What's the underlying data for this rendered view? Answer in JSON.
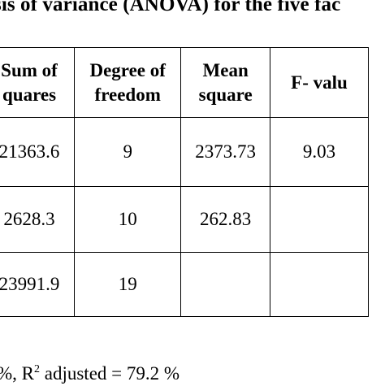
{
  "caption": "sis of variance (ANOVA) for the five fac",
  "table": {
    "headers": {
      "sum_of_squares": [
        "Sum of",
        "quares"
      ],
      "degree_of_freedom": [
        "Degree of",
        "freedom"
      ],
      "mean_square": [
        "Mean",
        "square"
      ],
      "f_value": [
        "F- valu"
      ]
    },
    "rows": [
      {
        "sum_of_squares": "21363.6",
        "degree_of_freedom": "9",
        "mean_square": "2373.73",
        "f_value": "9.03"
      },
      {
        "sum_of_squares": "2628.3",
        "degree_of_freedom": "10",
        "mean_square": "262.83",
        "f_value": ""
      },
      {
        "sum_of_squares": "23991.9",
        "degree_of_freedom": "19",
        "mean_square": "",
        "f_value": ""
      }
    ]
  },
  "footnote": {
    "prefix": "%,  R",
    "superscript": "2",
    "suffix": " adjusted = 79.2 %"
  }
}
